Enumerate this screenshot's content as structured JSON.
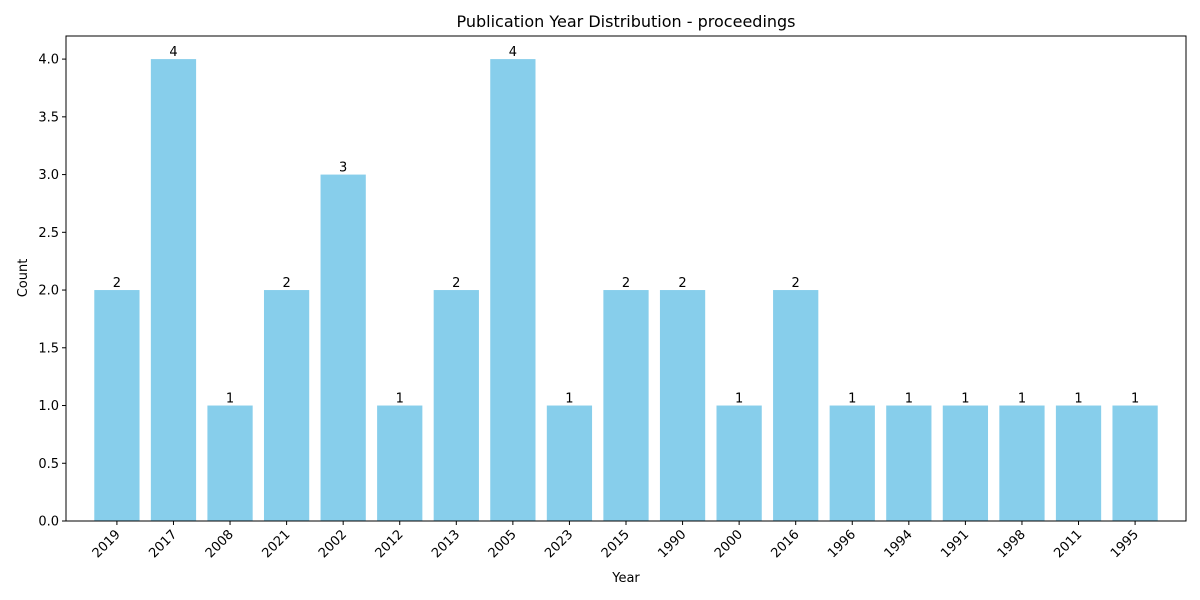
{
  "chart_data": {
    "type": "bar",
    "title": "Publication Year Distribution - proceedings",
    "xlabel": "Year",
    "ylabel": "Count",
    "categories": [
      "2019",
      "2017",
      "2008",
      "2021",
      "2002",
      "2012",
      "2013",
      "2005",
      "2023",
      "2015",
      "1990",
      "2000",
      "2016",
      "1996",
      "1994",
      "1991",
      "1998",
      "2011",
      "1995"
    ],
    "values": [
      2,
      4,
      1,
      2,
      3,
      1,
      2,
      4,
      1,
      2,
      2,
      1,
      2,
      1,
      1,
      1,
      1,
      1,
      1
    ],
    "ylim": [
      0,
      4.2
    ],
    "yticks": [
      "0.0",
      "0.5",
      "1.0",
      "1.5",
      "2.0",
      "2.5",
      "3.0",
      "3.5",
      "4.0"
    ],
    "bar_color": "#87CEEB",
    "grid": false,
    "data_labels": true
  }
}
